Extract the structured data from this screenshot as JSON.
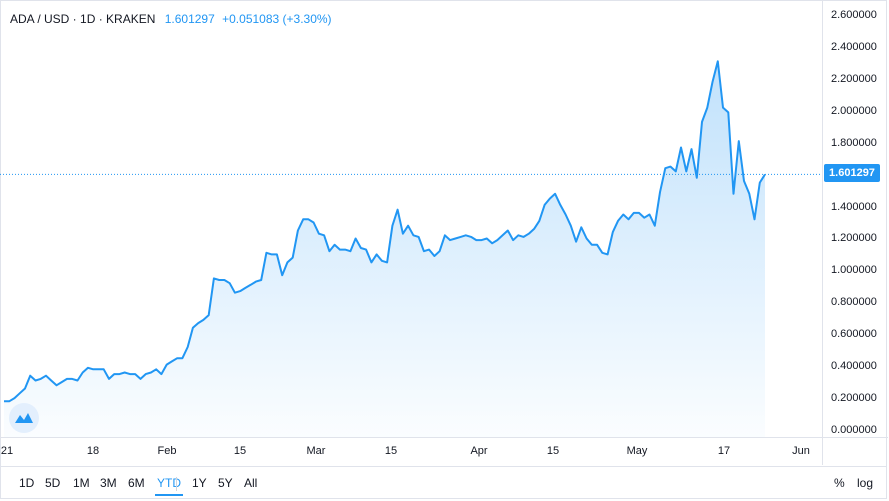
{
  "legend": {
    "symbol": "ADA / USD · 1D · KRAKEN",
    "price": "1.601297",
    "change": "+0.051083 (+3.30%)"
  },
  "price_badge": "1.601297",
  "range_buttons": [
    "1D",
    "5D",
    "1M",
    "3M",
    "6M",
    "YTD",
    "1Y",
    "5Y",
    "All"
  ],
  "active_range": "YTD",
  "options": {
    "percent": "%",
    "log": "log"
  },
  "colors": {
    "line": "#2196f3",
    "fill_top": "#2196f3",
    "text": "#131722",
    "grid": "#e0e3eb"
  },
  "chart_data": {
    "type": "area",
    "ylim": [
      0,
      2.6
    ],
    "yticks": [
      "2.600000",
      "2.400000",
      "2.200000",
      "2.000000",
      "1.800000",
      "1.600000",
      "1.400000",
      "1.200000",
      "1.000000",
      "0.800000",
      "0.600000",
      "0.400000",
      "0.200000",
      "0.000000"
    ],
    "xticks": [
      "21",
      "18",
      "Feb",
      "15",
      "Mar",
      "15",
      "Apr",
      "15",
      "May",
      "17",
      "Jun"
    ],
    "last_value": 1.601297,
    "series": [
      {
        "values": [
          0.18,
          0.18,
          0.2,
          0.23,
          0.26,
          0.34,
          0.31,
          0.32,
          0.34,
          0.31,
          0.28,
          0.3,
          0.32,
          0.32,
          0.31,
          0.36,
          0.39,
          0.38,
          0.38,
          0.38,
          0.32,
          0.35,
          0.35,
          0.36,
          0.35,
          0.35,
          0.32,
          0.35,
          0.36,
          0.38,
          0.35,
          0.41,
          0.43,
          0.45,
          0.45,
          0.52,
          0.64,
          0.67,
          0.69,
          0.72,
          0.95,
          0.94,
          0.94,
          0.92,
          0.86,
          0.87,
          0.89,
          0.91,
          0.93,
          0.94,
          1.11,
          1.1,
          1.1,
          0.97,
          1.05,
          1.08,
          1.25,
          1.32,
          1.32,
          1.3,
          1.23,
          1.22,
          1.12,
          1.16,
          1.13,
          1.13,
          1.12,
          1.2,
          1.14,
          1.13,
          1.05,
          1.1,
          1.06,
          1.05,
          1.28,
          1.38,
          1.23,
          1.28,
          1.22,
          1.21,
          1.12,
          1.13,
          1.09,
          1.12,
          1.22,
          1.19,
          1.2,
          1.21,
          1.22,
          1.21,
          1.19,
          1.19,
          1.2,
          1.17,
          1.19,
          1.22,
          1.25,
          1.19,
          1.22,
          1.21,
          1.23,
          1.26,
          1.31,
          1.41,
          1.45,
          1.48,
          1.41,
          1.35,
          1.28,
          1.18,
          1.27,
          1.2,
          1.16,
          1.16,
          1.11,
          1.1,
          1.24,
          1.31,
          1.35,
          1.32,
          1.36,
          1.36,
          1.33,
          1.35,
          1.28,
          1.49,
          1.64,
          1.65,
          1.62,
          1.77,
          1.62,
          1.76,
          1.58,
          1.93,
          2.02,
          2.18,
          2.31,
          2.02,
          1.99,
          1.48,
          1.81,
          1.56,
          1.48,
          1.32,
          1.55,
          1.601297
        ]
      }
    ]
  }
}
